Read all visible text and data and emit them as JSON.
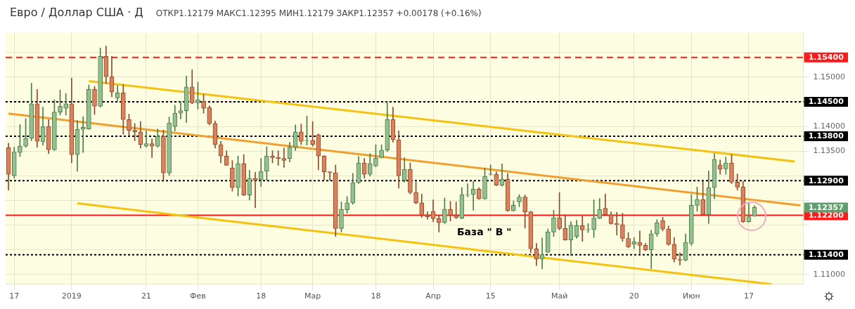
{
  "chart_data": {
    "type": "candlestick",
    "title": "Евро / Доллар США · Д",
    "subtitle": "ОТКР1.12179 МАКС1.12395 МИН1.12179 ЗАКР1.12357 +0.00178 (+0.16%)",
    "categories": [
      null,
      "17",
      null,
      null,
      null,
      null,
      null,
      null,
      null,
      null,
      null,
      "2019",
      null,
      null,
      null,
      null,
      null,
      null,
      null,
      null,
      null,
      null,
      null,
      null,
      "21",
      null,
      null,
      null,
      null,
      null,
      null,
      null,
      null,
      "Фев",
      null,
      null,
      null,
      null,
      null,
      null,
      null,
      null,
      null,
      null,
      "18",
      null,
      null,
      null,
      null,
      null,
      null,
      null,
      null,
      "Мар",
      null,
      null,
      null,
      null,
      null,
      null,
      null,
      null,
      null,
      null,
      "18",
      null,
      null,
      null,
      null,
      null,
      null,
      null,
      null,
      null,
      "Апр",
      null,
      null,
      null,
      null,
      null,
      null,
      null,
      null,
      null,
      "15",
      null,
      null,
      null,
      null,
      null,
      null,
      null,
      null,
      null,
      null,
      null,
      "Май",
      null,
      null,
      null,
      null,
      null,
      null,
      null,
      null,
      null,
      null,
      null,
      null,
      "20",
      null,
      null,
      null,
      null,
      null,
      null,
      null,
      null,
      null,
      "Июн",
      null,
      null,
      null,
      null,
      null,
      null,
      null,
      null,
      null,
      "17",
      null,
      null,
      null,
      null,
      null,
      null,
      null,
      null,
      null
    ],
    "ohlc": [
      [
        1.1357,
        1.1366,
        1.1271,
        1.1303
      ],
      [
        1.13,
        1.1358,
        1.1295,
        1.1348
      ],
      [
        1.1347,
        1.1404,
        1.1339,
        1.136
      ],
      [
        1.136,
        1.1416,
        1.1358,
        1.1376
      ],
      [
        1.1376,
        1.1488,
        1.1371,
        1.1446
      ],
      [
        1.1446,
        1.1475,
        1.1358,
        1.137
      ],
      [
        1.1369,
        1.1439,
        1.1362,
        1.14
      ],
      [
        1.14,
        1.1414,
        1.1345,
        1.1353
      ],
      [
        1.1353,
        1.1454,
        1.1351,
        1.1429
      ],
      [
        1.1429,
        1.1474,
        1.1423,
        1.1441
      ],
      [
        1.1437,
        1.1467,
        1.1423,
        1.1446
      ],
      [
        1.1446,
        1.1498,
        1.1326,
        1.1343
      ],
      [
        1.1343,
        1.1412,
        1.1309,
        1.1394
      ],
      [
        1.1394,
        1.142,
        1.1347,
        1.1398
      ],
      [
        1.1395,
        1.1484,
        1.1394,
        1.1475
      ],
      [
        1.1475,
        1.1481,
        1.1424,
        1.1441
      ],
      [
        1.1441,
        1.1559,
        1.1439,
        1.1542
      ],
      [
        1.1542,
        1.1563,
        1.1487,
        1.1501
      ],
      [
        1.1501,
        1.1542,
        1.146,
        1.147
      ],
      [
        1.1458,
        1.1483,
        1.1452,
        1.1468
      ],
      [
        1.1468,
        1.1485,
        1.1384,
        1.1414
      ],
      [
        1.1414,
        1.1425,
        1.1381,
        1.1392
      ],
      [
        1.1392,
        1.1406,
        1.1371,
        1.1389
      ],
      [
        1.1389,
        1.141,
        1.1356,
        1.1363
      ],
      [
        1.136,
        1.1391,
        1.1358,
        1.1365
      ],
      [
        1.1365,
        1.1375,
        1.1337,
        1.136
      ],
      [
        1.136,
        1.1395,
        1.1358,
        1.138
      ],
      [
        1.138,
        1.1393,
        1.1291,
        1.1306
      ],
      [
        1.1306,
        1.1419,
        1.1301,
        1.1407
      ],
      [
        1.14,
        1.1443,
        1.1391,
        1.1427
      ],
      [
        1.1427,
        1.1451,
        1.1415,
        1.1432
      ],
      [
        1.1432,
        1.1502,
        1.1408,
        1.148
      ],
      [
        1.148,
        1.1515,
        1.1446,
        1.1448
      ],
      [
        1.1448,
        1.149,
        1.1435,
        1.1454
      ],
      [
        1.1451,
        1.1465,
        1.1427,
        1.1437
      ],
      [
        1.1438,
        1.1442,
        1.1403,
        1.1406
      ],
      [
        1.1406,
        1.1411,
        1.1356,
        1.1363
      ],
      [
        1.1363,
        1.137,
        1.1326,
        1.134
      ],
      [
        1.134,
        1.1351,
        1.1321,
        1.1321
      ],
      [
        1.1316,
        1.1331,
        1.1269,
        1.1276
      ],
      [
        1.1276,
        1.134,
        1.1259,
        1.1325
      ],
      [
        1.1325,
        1.1343,
        1.126,
        1.1261
      ],
      [
        1.1261,
        1.1311,
        1.1251,
        1.1295
      ],
      [
        1.1295,
        1.1307,
        1.1235,
        1.1291
      ],
      [
        1.1292,
        1.1335,
        1.1278,
        1.1309
      ],
      [
        1.1309,
        1.1359,
        1.1291,
        1.134
      ],
      [
        1.134,
        1.1351,
        1.1326,
        1.1337
      ],
      [
        1.1337,
        1.1351,
        1.1321,
        1.1335
      ],
      [
        1.1335,
        1.1356,
        1.1317,
        1.1331
      ],
      [
        1.1335,
        1.1368,
        1.1328,
        1.1358
      ],
      [
        1.1358,
        1.1403,
        1.1351,
        1.1389
      ],
      [
        1.1389,
        1.1405,
        1.1363,
        1.137
      ],
      [
        1.1371,
        1.1421,
        1.1362,
        1.1372
      ],
      [
        1.1372,
        1.141,
        1.136,
        1.1363
      ],
      [
        1.1383,
        1.1385,
        1.1312,
        1.134
      ],
      [
        1.134,
        1.1341,
        1.1292,
        1.1308
      ],
      [
        1.1308,
        1.1308,
        1.1291,
        1.1306
      ],
      [
        1.1306,
        1.1322,
        1.1177,
        1.1193
      ],
      [
        1.1193,
        1.1247,
        1.1186,
        1.1232
      ],
      [
        1.1231,
        1.1258,
        1.1224,
        1.1245
      ],
      [
        1.1245,
        1.1305,
        1.1242,
        1.1286
      ],
      [
        1.1286,
        1.1339,
        1.1284,
        1.1326
      ],
      [
        1.1326,
        1.1335,
        1.1295,
        1.1303
      ],
      [
        1.1303,
        1.1345,
        1.1299,
        1.1325
      ],
      [
        1.132,
        1.1363,
        1.1318,
        1.1336
      ],
      [
        1.1337,
        1.1363,
        1.1336,
        1.1352
      ],
      [
        1.1352,
        1.1451,
        1.1349,
        1.1414
      ],
      [
        1.1414,
        1.1439,
        1.1368,
        1.1373
      ],
      [
        1.1373,
        1.1391,
        1.1275,
        1.13
      ],
      [
        1.1291,
        1.1337,
        1.1287,
        1.1313
      ],
      [
        1.1313,
        1.1326,
        1.1263,
        1.1266
      ],
      [
        1.1266,
        1.1287,
        1.1243,
        1.1245
      ],
      [
        1.1245,
        1.1263,
        1.1215,
        1.122
      ],
      [
        1.122,
        1.1227,
        1.1212,
        1.1217
      ],
      [
        1.1228,
        1.1251,
        1.1207,
        1.1213
      ],
      [
        1.1213,
        1.1219,
        1.1186,
        1.1205
      ],
      [
        1.1205,
        1.1255,
        1.1203,
        1.1232
      ],
      [
        1.1232,
        1.1248,
        1.1208,
        1.122
      ],
      [
        1.122,
        1.1247,
        1.1213,
        1.1215
      ],
      [
        1.1214,
        1.1276,
        1.1213,
        1.1262
      ],
      [
        1.1261,
        1.1284,
        1.1257,
        1.1262
      ],
      [
        1.1262,
        1.1289,
        1.123,
        1.1273
      ],
      [
        1.1273,
        1.1276,
        1.1252,
        1.1253
      ],
      [
        1.1253,
        1.1316,
        1.1252,
        1.1299
      ],
      [
        1.1303,
        1.1322,
        1.1301,
        1.1304
      ],
      [
        1.1303,
        1.1308,
        1.128,
        1.1281
      ],
      [
        1.1281,
        1.1324,
        1.1279,
        1.1293
      ],
      [
        1.1293,
        1.1305,
        1.1228,
        1.1229
      ],
      [
        1.1229,
        1.1249,
        1.1228,
        1.124
      ],
      [
        1.1247,
        1.1262,
        1.1237,
        1.1257
      ],
      [
        1.1257,
        1.1261,
        1.1194,
        1.1227
      ],
      [
        1.1227,
        1.1228,
        1.1144,
        1.1152
      ],
      [
        1.1152,
        1.1163,
        1.1118,
        1.1131
      ],
      [
        1.1131,
        1.1174,
        1.1111,
        1.114
      ],
      [
        1.1145,
        1.1192,
        1.1144,
        1.1186
      ],
      [
        1.1186,
        1.123,
        1.1177,
        1.1215
      ],
      [
        1.1215,
        1.1266,
        1.119,
        1.1193
      ],
      [
        1.1193,
        1.1221,
        1.1169,
        1.117
      ],
      [
        1.117,
        1.1207,
        1.1138,
        1.12
      ],
      [
        1.1177,
        1.121,
        1.1173,
        1.1199
      ],
      [
        1.1199,
        1.1219,
        1.1167,
        1.119
      ],
      [
        1.119,
        1.1203,
        1.1185,
        1.1191
      ],
      [
        1.1191,
        1.1251,
        1.1175,
        1.1214
      ],
      [
        1.1214,
        1.1254,
        1.1213,
        1.1232
      ],
      [
        1.1234,
        1.1263,
        1.1219,
        1.1221
      ],
      [
        1.1221,
        1.1227,
        1.1202,
        1.1203
      ],
      [
        1.1203,
        1.1226,
        1.118,
        1.1201
      ],
      [
        1.1201,
        1.1224,
        1.1167,
        1.1173
      ],
      [
        1.1173,
        1.1185,
        1.1154,
        1.1156
      ],
      [
        1.1161,
        1.1175,
        1.1152,
        1.1166
      ],
      [
        1.1165,
        1.1188,
        1.1142,
        1.1159
      ],
      [
        1.1159,
        1.1163,
        1.1148,
        1.115
      ],
      [
        1.115,
        1.119,
        1.1112,
        1.1182
      ],
      [
        1.1182,
        1.1211,
        1.1177,
        1.1205
      ],
      [
        1.1209,
        1.1216,
        1.1188,
        1.1192
      ],
      [
        1.1192,
        1.1198,
        1.1159,
        1.1161
      ],
      [
        1.1161,
        1.1175,
        1.1125,
        1.1131
      ],
      [
        1.1131,
        1.1144,
        1.1119,
        1.1129
      ],
      [
        1.1129,
        1.1182,
        1.1127,
        1.1165
      ],
      [
        1.1163,
        1.1262,
        1.1159,
        1.124
      ],
      [
        1.124,
        1.1277,
        1.1228,
        1.1252
      ],
      [
        1.1252,
        1.1289,
        1.122,
        1.1221
      ],
      [
        1.1221,
        1.131,
        1.1203,
        1.1276
      ],
      [
        1.1276,
        1.1345,
        1.1253,
        1.1333
      ],
      [
        1.1322,
        1.1332,
        1.1303,
        1.1313
      ],
      [
        1.1314,
        1.1338,
        1.1303,
        1.1326
      ],
      [
        1.1326,
        1.1343,
        1.1284,
        1.1287
      ],
      [
        1.1287,
        1.1304,
        1.1271,
        1.1277
      ],
      [
        1.1277,
        1.1289,
        1.1205,
        1.1207
      ],
      [
        1.1207,
        1.1245,
        1.1206,
        1.1217
      ],
      [
        1.12179,
        1.12395,
        1.12179,
        1.12357
      ],
      null,
      null,
      null,
      null,
      null,
      null,
      null,
      null
    ],
    "series": [
      {
        "type": "line",
        "color": "#f5c211",
        "values": [
          null,
          null,
          null,
          null,
          null,
          null,
          null,
          null,
          null,
          null,
          null,
          null,
          null,
          null,
          1.1492,
          null,
          null,
          null,
          null,
          null,
          null,
          null,
          null,
          null,
          null,
          null,
          null,
          null,
          null,
          null,
          null,
          null,
          null,
          null,
          null,
          null,
          null,
          null,
          null,
          null,
          null,
          null,
          null,
          null,
          null,
          null,
          null,
          null,
          null,
          null,
          null,
          null,
          null,
          null,
          null,
          null,
          null,
          null,
          null,
          null,
          null,
          null,
          null,
          null,
          null,
          null,
          null,
          null,
          null,
          null,
          null,
          null,
          null,
          null,
          null,
          null,
          null,
          null,
          null,
          null,
          null,
          null,
          null,
          null,
          null,
          null,
          null,
          null,
          null,
          null,
          null,
          null,
          null,
          null,
          null,
          null,
          null,
          null,
          null,
          null,
          null,
          null,
          null,
          null,
          null,
          null,
          null,
          null,
          null,
          null,
          null,
          null,
          null,
          null,
          null,
          null,
          null,
          null,
          null,
          null,
          null,
          null,
          null,
          null,
          null,
          null,
          null,
          null,
          null,
          null,
          null,
          null,
          null,
          null,
          null,
          null,
          null,
          1.1329,
          null
        ]
      },
      {
        "type": "line",
        "color": "#f0a030",
        "values": [
          1.1426,
          null,
          null,
          null,
          null,
          null,
          null,
          null,
          null,
          null,
          null,
          null,
          null,
          null,
          null,
          null,
          null,
          null,
          null,
          null,
          null,
          null,
          null,
          null,
          null,
          null,
          null,
          null,
          null,
          null,
          null,
          null,
          null,
          null,
          null,
          null,
          null,
          null,
          null,
          null,
          null,
          null,
          null,
          null,
          null,
          null,
          null,
          null,
          null,
          null,
          null,
          null,
          null,
          null,
          null,
          null,
          null,
          null,
          null,
          null,
          null,
          null,
          null,
          null,
          null,
          null,
          null,
          null,
          null,
          null,
          null,
          null,
          null,
          null,
          null,
          null,
          null,
          null,
          null,
          null,
          null,
          null,
          null,
          null,
          null,
          null,
          null,
          null,
          null,
          null,
          null,
          null,
          null,
          null,
          null,
          null,
          null,
          null,
          null,
          null,
          null,
          null,
          null,
          null,
          null,
          null,
          null,
          null,
          null,
          null,
          null,
          null,
          null,
          null,
          null,
          null,
          null,
          null,
          null,
          null,
          null,
          null,
          null,
          null,
          null,
          null,
          null,
          null,
          null,
          null,
          null,
          null,
          null,
          null,
          null,
          null,
          null,
          null,
          1.124
        ]
      },
      {
        "type": "line",
        "color": "#f5c211",
        "values": [
          null,
          null,
          null,
          null,
          null,
          null,
          null,
          null,
          null,
          null,
          null,
          null,
          1.1244,
          null,
          null,
          null,
          null,
          null,
          null,
          null,
          null,
          null,
          null,
          null,
          null,
          null,
          null,
          null,
          null,
          null,
          null,
          null,
          null,
          null,
          null,
          null,
          null,
          null,
          null,
          null,
          null,
          null,
          null,
          null,
          null,
          null,
          null,
          null,
          null,
          null,
          null,
          null,
          null,
          null,
          null,
          null,
          null,
          null,
          null,
          null,
          null,
          null,
          null,
          null,
          null,
          null,
          null,
          null,
          null,
          null,
          null,
          null,
          null,
          null,
          null,
          null,
          null,
          null,
          null,
          null,
          null,
          null,
          null,
          null,
          null,
          null,
          null,
          null,
          null,
          null,
          null,
          null,
          null,
          null,
          null,
          null,
          null,
          null,
          null,
          null,
          null,
          null,
          null,
          null,
          null,
          null,
          null,
          null,
          null,
          null,
          null,
          null,
          null,
          null,
          null,
          null,
          null,
          null,
          null,
          null,
          null,
          null,
          null,
          null,
          null,
          null,
          null,
          null,
          null,
          null,
          null,
          null,
          null,
          1.108,
          null,
          null,
          null,
          null,
          null
        ]
      }
    ],
    "ylim": [
      1.108,
      1.159
    ],
    "yticks": [
      {
        "value": 1.11,
        "label": "1.11000"
      },
      {
        "value": 1.115,
        "label": null
      },
      {
        "value": 1.12,
        "label": null
      },
      {
        "value": 1.125,
        "label": null
      },
      {
        "value": 1.13,
        "label": null
      },
      {
        "value": 1.135,
        "label": "1.13500"
      },
      {
        "value": 1.14,
        "label": "1.14000"
      },
      {
        "value": 1.145,
        "label": null
      },
      {
        "value": 1.15,
        "label": "1.15000"
      },
      {
        "value": 1.155,
        "label": null
      }
    ],
    "ref_lines": [
      {
        "axis": "y",
        "value": 1.154,
        "label": "1.15400",
        "color": "#ff1a1a",
        "line_style": "dashed"
      },
      {
        "axis": "y",
        "value": 1.145,
        "label": "1.14500",
        "color": "#000000",
        "line_style": "dotted"
      },
      {
        "axis": "y",
        "value": 1.138,
        "label": "1.13800",
        "color": "#000000",
        "line_style": "dotted"
      },
      {
        "axis": "y",
        "value": 1.129,
        "label": "1.12900",
        "color": "#000000",
        "line_style": "dotted"
      },
      {
        "axis": "y",
        "value": 1.114,
        "label": "1.11400",
        "color": "#000000",
        "line_style": "dotted"
      },
      {
        "axis": "y",
        "value": 1.122,
        "label": "1.12200",
        "color": "#ff1a1a",
        "line_style": "solid"
      }
    ],
    "annotations": [
      "База \" В \"",
      "1.12357"
    ],
    "grid": true
  }
}
